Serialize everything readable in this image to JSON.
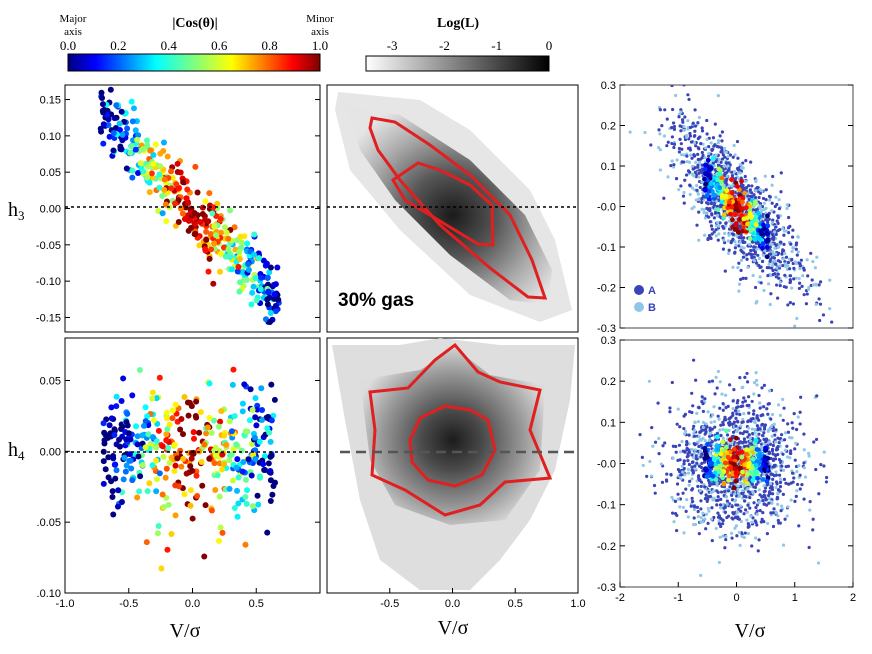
{
  "figure": {
    "colorbar_cos": {
      "title": "|Cos(θ)|",
      "left_label_line1": "Major",
      "left_label_line2": "axis",
      "right_label_line1": "Minor",
      "right_label_line2": "axis",
      "ticks": [
        "0.0",
        "0.2",
        "0.4",
        "0.6",
        "0.8",
        "1.0"
      ],
      "range": [
        0.0,
        1.0
      ]
    },
    "colorbar_logL": {
      "title": "Log(L)",
      "ticks": [
        "-3",
        "-2",
        "-1",
        "0"
      ],
      "range": [
        -3.5,
        0
      ]
    },
    "ylabel_top": "h",
    "ylabel_top_sub": "3",
    "ylabel_bottom": "h",
    "ylabel_bottom_sub": "4",
    "xlabel": "V/σ",
    "panel_annotation": "30% gas",
    "legend": [
      {
        "marker": "A",
        "label": "A",
        "color": "#3b43b8"
      },
      {
        "marker": "B",
        "label": "B",
        "color": "#8fc8e6"
      }
    ]
  },
  "chart_data": [
    {
      "id": "top-left",
      "type": "scatter",
      "xlabel": "",
      "ylabel": "h3",
      "xlim": [
        -1.0,
        1.0
      ],
      "ylim": [
        -0.17,
        0.17
      ],
      "yticks": [
        "0.15",
        "0.10",
        "0.05",
        "0.00",
        "-0.05",
        "-0.10",
        "-0.15"
      ],
      "reference_line": 0.0,
      "trend": "anti-correlated h3 vs V/sigma, points colored by |Cos(theta)|; blue near |V/sigma| ~ 0.5, red near V/sigma ~ 0"
    },
    {
      "id": "top-middle",
      "type": "heatmap",
      "xlim": [
        -1.0,
        1.0
      ],
      "ylim": [
        -0.17,
        0.17
      ],
      "annotation": "30% gas",
      "contours": 2,
      "trend": "density anti-correlated, peak near (0.05, -0.02)"
    },
    {
      "id": "top-right",
      "type": "scatter",
      "xlim": [
        -2,
        2
      ],
      "ylim": [
        -0.3,
        0.3
      ],
      "yticks": [
        "0.3",
        "0.2",
        "0.1",
        "-0.0",
        "-0.1",
        "-0.2",
        "-0.3"
      ],
      "series": [
        {
          "name": "A"
        },
        {
          "name": "B"
        }
      ]
    },
    {
      "id": "bottom-left",
      "type": "scatter",
      "xlim": [
        -1.0,
        1.0
      ],
      "ylim": [
        -0.1,
        0.08
      ],
      "yticks": [
        "0.05",
        "0.00",
        ".0.05",
        ".0.10"
      ],
      "xticks": [
        "-1.0",
        "-0.5",
        "0.0",
        "0.5"
      ],
      "reference_line": 0.0
    },
    {
      "id": "bottom-middle",
      "type": "heatmap",
      "xlim": [
        -1.0,
        1.0
      ],
      "ylim": [
        -0.1,
        0.08
      ],
      "xticks": [
        "-0.5",
        "0.0",
        "0.5",
        "1.0"
      ],
      "contours": 2
    },
    {
      "id": "bottom-right",
      "type": "scatter",
      "xlim": [
        -2,
        2
      ],
      "ylim": [
        -0.3,
        0.3
      ],
      "yticks": [
        "0.3",
        "0.2",
        "0.1",
        "-0.0",
        "-0.1",
        "-0.2",
        "-0.3"
      ],
      "xticks": [
        "-2",
        "-1",
        "0",
        "1",
        "2"
      ],
      "series": [
        {
          "name": "A"
        },
        {
          "name": "B"
        }
      ]
    }
  ]
}
